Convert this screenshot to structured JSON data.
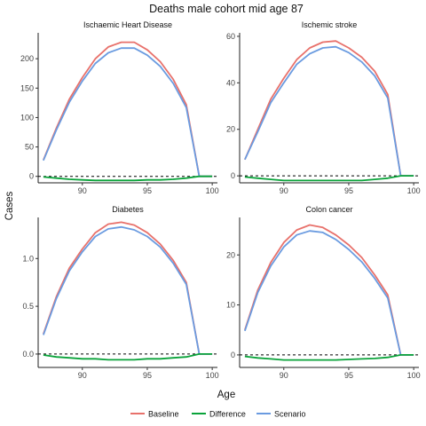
{
  "chart_data": {
    "type": "line",
    "title": "Deaths male cohort mid age 87",
    "xlabel": "Age",
    "ylabel": "Cases",
    "legend": {
      "position": "bottom",
      "entries": [
        {
          "name": "Baseline",
          "color": "#e8716b"
        },
        {
          "name": "Difference",
          "color": "#0aa33a"
        },
        {
          "name": "Scenario",
          "color": "#6a9be0"
        }
      ]
    },
    "reference_line": {
      "y": 0,
      "style": "dashed"
    },
    "grid": false,
    "x": [
      87,
      88,
      89,
      90,
      91,
      92,
      93,
      94,
      95,
      96,
      97,
      98,
      99,
      100
    ],
    "xlim": [
      86.6,
      100.4
    ],
    "xticks": [
      90,
      95,
      100
    ],
    "panels": [
      {
        "title": "Ischaemic Heart Disease",
        "ylim": [
          -11,
          244
        ],
        "yticks": [
          0,
          50,
          100,
          150,
          200
        ],
        "series": [
          {
            "name": "Baseline",
            "values": [
              28,
              82,
              131,
              168,
              200,
              220,
              228,
              228,
              215,
              195,
              165,
              122,
              0,
              0
            ]
          },
          {
            "name": "Scenario",
            "values": [
              27,
              79,
              126,
              162,
              192,
              210,
              218,
              218,
              206,
              187,
              158,
              117,
              0,
              0
            ]
          },
          {
            "name": "Difference",
            "values": [
              -1,
              -3,
              -5,
              -6,
              -7,
              -7,
              -7,
              -7,
              -6,
              -6,
              -5,
              -3,
              0,
              0
            ]
          }
        ]
      },
      {
        "title": "Ischemic stroke",
        "ylim": [
          -3,
          61.5
        ],
        "yticks": [
          0,
          20,
          40,
          60
        ],
        "series": [
          {
            "name": "Baseline",
            "values": [
              7,
              20,
              33,
              42,
              50,
              55,
              57.5,
              58,
              55,
              51,
              45,
              35,
              0,
              0
            ]
          },
          {
            "name": "Scenario",
            "values": [
              7,
              19,
              31.5,
              40,
              48,
              52.5,
              55,
              55.5,
              53,
              49,
              43,
              33.5,
              0,
              0
            ]
          },
          {
            "name": "Difference",
            "values": [
              -0.5,
              -1,
              -1.5,
              -2,
              -2,
              -2,
              -2,
              -2,
              -2,
              -2,
              -1.5,
              -1,
              0,
              0
            ]
          }
        ]
      },
      {
        "title": "Diabetes",
        "ylim": [
          -0.14,
          1.43
        ],
        "yticks": [
          0,
          0.5,
          1.0
        ],
        "ytick_labels": [
          "0.0",
          "0.5",
          "1.0"
        ],
        "series": [
          {
            "name": "Baseline",
            "values": [
              0.21,
              0.6,
              0.9,
              1.1,
              1.27,
              1.36,
              1.38,
              1.35,
              1.27,
              1.15,
              0.98,
              0.75,
              0,
              0
            ]
          },
          {
            "name": "Scenario",
            "values": [
              0.2,
              0.58,
              0.87,
              1.07,
              1.23,
              1.31,
              1.33,
              1.3,
              1.23,
              1.12,
              0.95,
              0.73,
              0,
              0
            ]
          },
          {
            "name": "Difference",
            "values": [
              -0.01,
              -0.03,
              -0.04,
              -0.05,
              -0.05,
              -0.06,
              -0.06,
              -0.06,
              -0.05,
              -0.05,
              -0.04,
              -0.03,
              0,
              0
            ]
          }
        ]
      },
      {
        "title": "Colon cancer",
        "ylim": [
          -2.5,
          27.5
        ],
        "yticks": [
          0,
          10,
          20
        ],
        "series": [
          {
            "name": "Baseline",
            "values": [
              5,
              13,
              18.5,
              22.5,
              25,
              26,
              25.5,
              24,
              22,
              19.5,
              16,
              12,
              0,
              0
            ]
          },
          {
            "name": "Scenario",
            "values": [
              4.8,
              12.5,
              17.8,
              21.6,
              24,
              24.8,
              24.5,
              23.1,
              21.1,
              18.6,
              15.3,
              11.4,
              0,
              0
            ]
          },
          {
            "name": "Difference",
            "values": [
              -0.3,
              -0.6,
              -0.8,
              -1,
              -1,
              -1,
              -1,
              -1,
              -0.9,
              -0.8,
              -0.7,
              -0.5,
              0,
              0
            ]
          }
        ]
      }
    ]
  }
}
